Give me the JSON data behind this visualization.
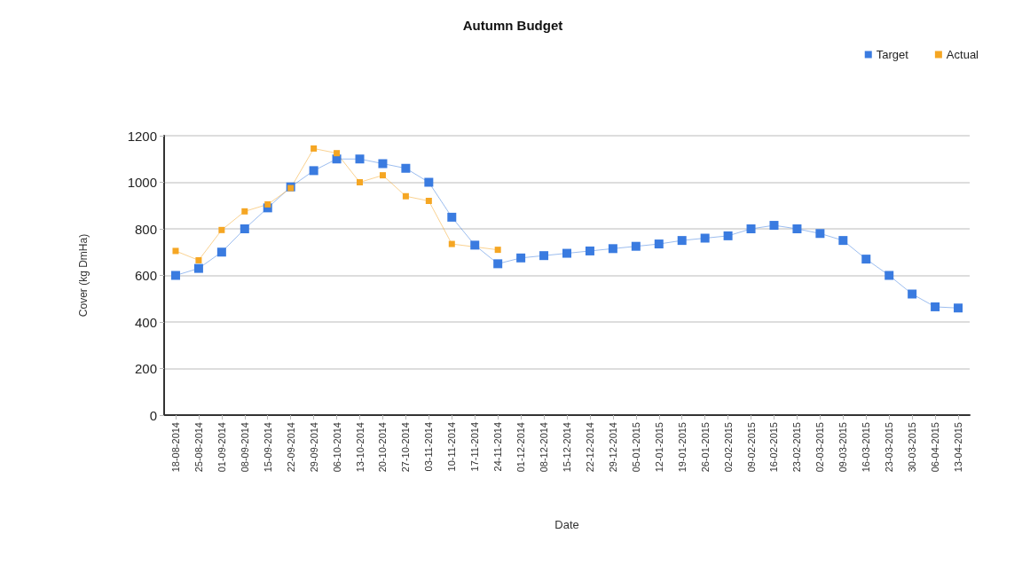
{
  "chart_data": {
    "type": "line",
    "title": "Autumn Budget",
    "xlabel": "Date",
    "ylabel": "Cover (kg DmHa)",
    "categories": [
      "18-08-2014",
      "25-08-2014",
      "01-09-2014",
      "08-09-2014",
      "15-09-2014",
      "22-09-2014",
      "29-09-2014",
      "06-10-2014",
      "13-10-2014",
      "20-10-2014",
      "27-10-2014",
      "03-11-2014",
      "10-11-2014",
      "17-11-2014",
      "24-11-2014",
      "01-12-2014",
      "08-12-2014",
      "15-12-2014",
      "22-12-2014",
      "29-12-2014",
      "05-01-2015",
      "12-01-2015",
      "19-01-2015",
      "26-01-2015",
      "02-02-2015",
      "09-02-2015",
      "16-02-2015",
      "23-02-2015",
      "02-03-2015",
      "09-03-2015",
      "16-03-2015",
      "23-03-2015",
      "30-03-2015",
      "06-04-2015",
      "13-04-2015"
    ],
    "series": [
      {
        "name": "Target",
        "color": "#3a7be0",
        "values": [
          600,
          630,
          700,
          800,
          890,
          980,
          1050,
          1100,
          1100,
          1080,
          1060,
          1000,
          850,
          730,
          650,
          675,
          685,
          695,
          705,
          715,
          725,
          735,
          750,
          760,
          770,
          800,
          815,
          800,
          780,
          750,
          670,
          600,
          520,
          465,
          460
        ]
      },
      {
        "name": "Actual",
        "color": "#f5a623",
        "values": [
          705,
          665,
          795,
          875,
          905,
          975,
          1145,
          1125,
          1000,
          1030,
          940,
          920,
          735,
          null,
          710,
          null,
          null,
          null,
          null,
          null,
          null,
          null,
          null,
          null,
          null,
          null,
          null,
          null,
          null,
          null,
          null,
          null,
          null,
          null,
          null
        ]
      }
    ],
    "ylim": [
      0,
      1200
    ],
    "yticks": [
      0,
      200,
      400,
      600,
      800,
      1000,
      1200
    ],
    "grid": "y",
    "legend": "top right",
    "marker": "square",
    "line_style": "solid"
  }
}
